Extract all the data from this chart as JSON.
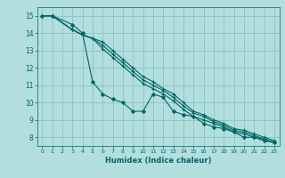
{
  "xlabel": "Humidex (Indice chaleur)",
  "background_color": "#b2dede",
  "grid_color": "#80bfbf",
  "line_color": "#006666",
  "xlim": [
    -0.5,
    23.5
  ],
  "ylim": [
    7.5,
    15.5
  ],
  "xticks": [
    0,
    1,
    2,
    3,
    4,
    5,
    6,
    7,
    8,
    9,
    10,
    11,
    12,
    13,
    14,
    15,
    16,
    17,
    18,
    19,
    20,
    21,
    22,
    23
  ],
  "yticks": [
    8,
    9,
    10,
    11,
    12,
    13,
    14,
    15
  ],
  "series": [
    {
      "x": [
        0,
        1,
        3,
        4,
        5,
        6,
        7,
        8,
        9,
        10,
        11,
        12,
        13,
        14,
        15,
        16,
        17,
        18,
        19,
        20,
        21,
        22,
        23
      ],
      "y": [
        15,
        15,
        14.5,
        14.0,
        11.2,
        10.5,
        10.2,
        10.0,
        9.5,
        9.5,
        10.5,
        10.3,
        9.5,
        9.3,
        9.2,
        8.8,
        8.6,
        8.5,
        8.3,
        8.0,
        8.0,
        7.8,
        7.7
      ],
      "marker": "D",
      "markersize": 2.0,
      "lw": 0.8
    },
    {
      "x": [
        0,
        1,
        3,
        4,
        5,
        6,
        7,
        8,
        9,
        10,
        11,
        12,
        13,
        14,
        15,
        16,
        17,
        18,
        19,
        20,
        21,
        22,
        23
      ],
      "y": [
        15,
        15,
        14.2,
        13.9,
        13.7,
        13.5,
        13.0,
        12.5,
        12.0,
        11.5,
        11.2,
        10.8,
        10.5,
        10.0,
        9.5,
        9.3,
        9.0,
        8.8,
        8.5,
        8.4,
        8.2,
        8.0,
        7.8
      ],
      "marker": "+",
      "markersize": 3.0,
      "lw": 0.8
    },
    {
      "x": [
        0,
        1,
        3,
        4,
        5,
        6,
        7,
        8,
        9,
        10,
        11,
        12,
        13,
        14,
        15,
        16,
        17,
        18,
        19,
        20,
        21,
        22,
        23
      ],
      "y": [
        15,
        15,
        14.2,
        13.9,
        13.7,
        13.3,
        12.8,
        12.3,
        11.8,
        11.3,
        11.0,
        10.7,
        10.3,
        9.8,
        9.4,
        9.2,
        8.9,
        8.7,
        8.4,
        8.3,
        8.1,
        7.9,
        7.7
      ],
      "marker": "+",
      "markersize": 3.0,
      "lw": 0.8
    },
    {
      "x": [
        0,
        1,
        3,
        4,
        5,
        6,
        7,
        8,
        9,
        10,
        11,
        12,
        13,
        14,
        15,
        16,
        17,
        18,
        19,
        20,
        21,
        22,
        23
      ],
      "y": [
        15,
        15,
        14.2,
        13.9,
        13.7,
        13.1,
        12.6,
        12.1,
        11.6,
        11.1,
        10.8,
        10.5,
        10.1,
        9.6,
        9.2,
        9.0,
        8.8,
        8.6,
        8.3,
        8.2,
        8.0,
        7.9,
        7.7
      ],
      "marker": "+",
      "markersize": 3.0,
      "lw": 0.8
    }
  ]
}
